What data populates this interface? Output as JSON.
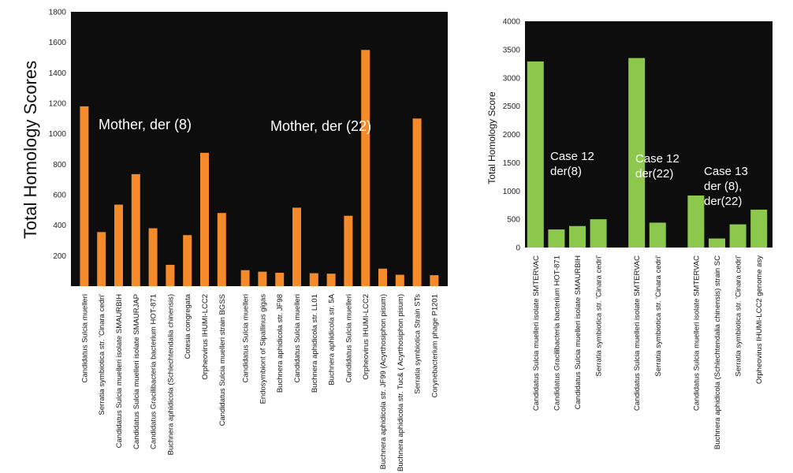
{
  "chart_data": [
    {
      "type": "bar",
      "ylabel": "Total Homology Scores",
      "ylim": [
        0,
        1800
      ],
      "yticks": [
        200,
        400,
        600,
        800,
        1000,
        1200,
        1400,
        1600,
        1800
      ],
      "bar_color": "#f58a2a",
      "background": "#0d0d0d",
      "groups": [
        {
          "label": "Mother, der (8)",
          "categories": [
            "Candidatus Sulcia muelleri",
            "Serratia symbiotica str. 'Cinara cedri'",
            "Candidatus Sulcia muelleri isolate SMAURBIH",
            "Candidatus Sulcia muelleri isolate SMAURJAP",
            "Candidatus Gracilibacteria bacterium HOT-871",
            "Buchnera aphidicola (Schlechtendalia chinensis)",
            "Cotesia congregata",
            "Orpheovirus IHUMI-LCC2",
            "Candidatus Sulcia muelleri strain BGSS"
          ],
          "values": [
            1180,
            355,
            535,
            735,
            380,
            140,
            335,
            875,
            480
          ]
        },
        {
          "label": "Mother, der (22)",
          "categories": [
            "Candidatus Sulcia muelleri",
            "Endosymbiont of Sipallinus gigas",
            "Buchnera aphidicola str. JF98",
            "Candidatus Sulcia muelleri",
            "Buchnera aphidicola str. LL01",
            "Buchnera aphidicola str. 5A",
            "Candidatus Sulcia muelleri",
            "Orpheovirus IHUMI-LCC2",
            "Buchnera aphidicola str. JF99 (Acyrthosiphon pisum)",
            "Buchnera aphidicola str. Tuc& ( Acyrthosiphon pisum)",
            "Serratia symbiotica Strain STs",
            "Corynebacterium phage P1201"
          ],
          "values": [
            105,
            95,
            88,
            515,
            85,
            82,
            462,
            1550,
            115,
            75,
            1100,
            72
          ]
        }
      ]
    },
    {
      "type": "bar",
      "ylabel": "Total Homology Score",
      "ylim": [
        0,
        4000
      ],
      "yticks": [
        0,
        500,
        1000,
        1500,
        2000,
        2500,
        3000,
        3500,
        4000
      ],
      "bar_color": "#8cc84b",
      "background": "#0d0d0d",
      "groups": [
        {
          "label": "Case 12 der(8)",
          "label_lines": [
            "Case 12",
            "der(8)"
          ],
          "categories": [
            "Candidatus Sulcia muelleri isolate SMTERVAC",
            "Candidatus Gracilibacteria bacterium HOT-871",
            "Candidatus Sulcia muelleri isolate SMAURBIH",
            "Serratia symbiotica str. 'Cinara cedri'"
          ],
          "values": [
            3290,
            320,
            380,
            500
          ]
        },
        {
          "label": "Case 12 der(22)",
          "label_lines": [
            "Case 12",
            "der(22)"
          ],
          "categories": [
            "Candidatus Sulcia muelleri isolate SMTERVAC",
            "Serratia symbiotica str. 'Cinara cedri'"
          ],
          "values": [
            3350,
            440
          ]
        },
        {
          "label": "Case 13 der (8), der(22)",
          "label_lines": [
            "Case 13",
            "der (8),",
            "der(22)"
          ],
          "categories": [
            "Candidatus Sulcia muelleri isolate SMTERVAC",
            "Buchnera aphidicola (Schlechtendalia chinensis) strain SC",
            "Serratia symbiotica str. 'Cinara cedri'",
            "Orpheovirus IHUMI-LCC2 genome asy"
          ],
          "values": [
            920,
            160,
            410,
            670
          ]
        }
      ]
    }
  ]
}
